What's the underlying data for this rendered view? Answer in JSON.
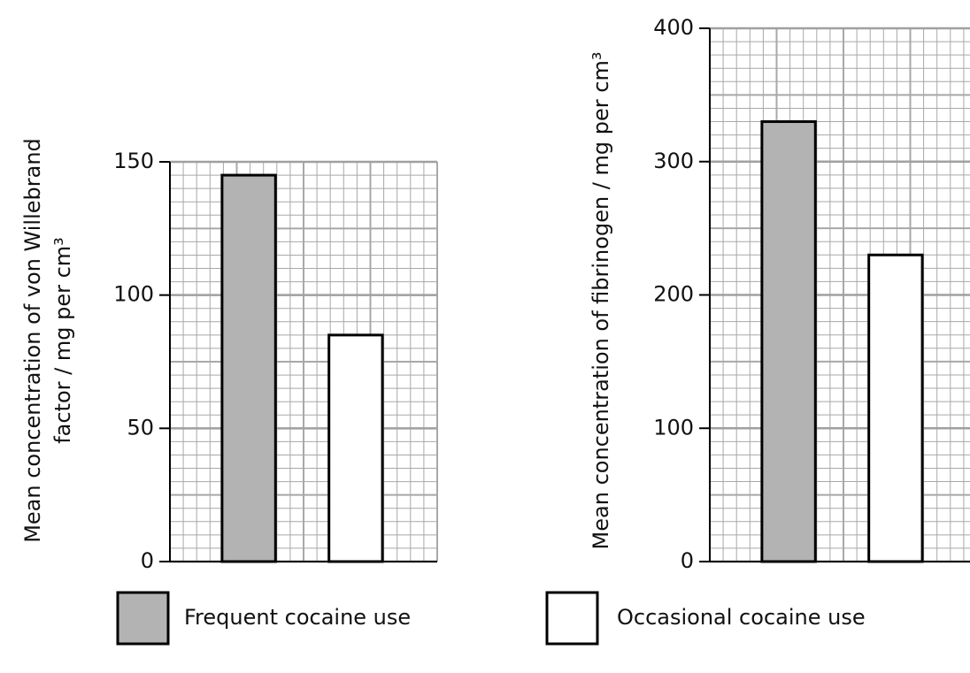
{
  "chart_data": [
    {
      "type": "bar",
      "y_label": [
        "Mean concentration of von Willebrand",
        "factor / mg per cm³"
      ],
      "series": [
        {
          "name": "Frequent cocaine use",
          "color": "#b3b3b3",
          "values": [
            145
          ]
        },
        {
          "name": "Occasional cocaine use",
          "color": "#ffffff",
          "values": [
            85
          ]
        }
      ],
      "ylim": [
        0,
        150
      ],
      "yticks": [
        0,
        50,
        100,
        150
      ],
      "grid": true
    },
    {
      "type": "bar",
      "y_label": [
        "Mean concentration of fibrinogen / mg per cm³"
      ],
      "series": [
        {
          "name": "Frequent cocaine use",
          "color": "#b3b3b3",
          "values": [
            330
          ]
        },
        {
          "name": "Occasional cocaine use",
          "color": "#ffffff",
          "values": [
            230
          ]
        }
      ],
      "ylim": [
        0,
        400
      ],
      "yticks": [
        0,
        100,
        200,
        300,
        400
      ],
      "grid": true
    }
  ]
}
